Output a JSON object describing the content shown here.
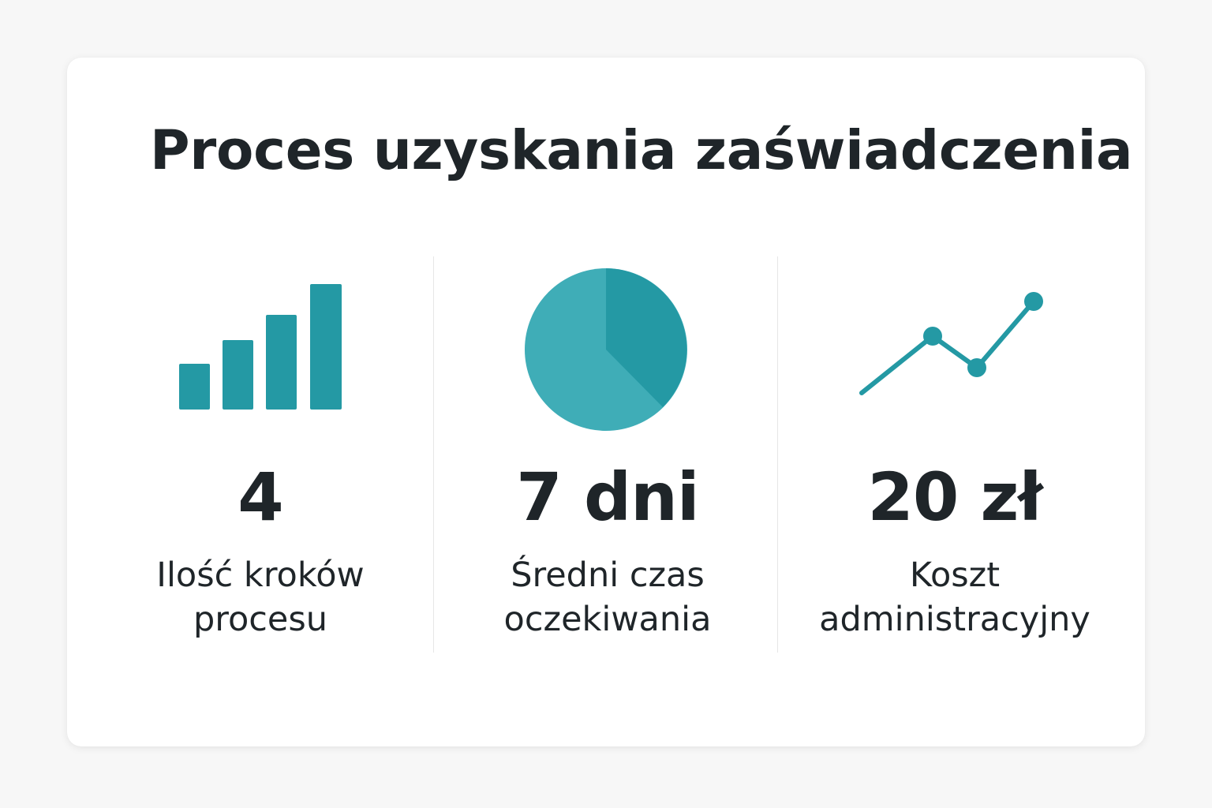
{
  "title": "Proces uzyskania zaświadczenia",
  "colors": {
    "accent": "#2499a4",
    "accent_light": "#3fadb7",
    "text": "#1f2529"
  },
  "stats": [
    {
      "icon": "bar-chart-icon",
      "value": "4",
      "label_line1": "Ilość kroków",
      "label_line2": "procesu"
    },
    {
      "icon": "pie-chart-icon",
      "value": "7 dni",
      "label_line1": "Średni czas",
      "label_line2": "oczekiwania"
    },
    {
      "icon": "line-chart-icon",
      "value": "20 zł",
      "label_line1": "Koszt",
      "label_line2": "administracyjny"
    }
  ]
}
